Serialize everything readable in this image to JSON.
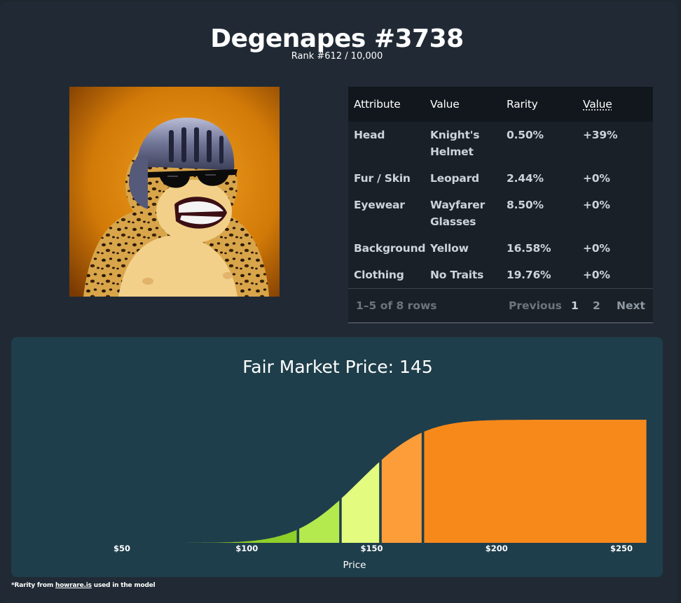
{
  "header": {
    "title": "Degenapes #3738",
    "rank": "Rank #612 / 10,000"
  },
  "image": {
    "background_color": "#e08a0c",
    "subject": "ape-with-knight-helmet"
  },
  "table": {
    "columns": [
      "Attribute",
      "Value",
      "Rarity",
      "Value"
    ],
    "rows": [
      {
        "attribute": "Head",
        "value": "Knight's Helmet",
        "rarity": "0.50%",
        "impact": "+39%"
      },
      {
        "attribute": "Fur / Skin",
        "value": "Leopard",
        "rarity": "2.44%",
        "impact": "+0%"
      },
      {
        "attribute": "Eyewear",
        "value": "Wayfarer Glasses",
        "rarity": "8.50%",
        "impact": "+0%"
      },
      {
        "attribute": "Background",
        "value": "Yellow",
        "rarity": "16.58%",
        "impact": "+0%"
      },
      {
        "attribute": "Clothing",
        "value": "No Traits",
        "rarity": "19.76%",
        "impact": "+0%"
      }
    ],
    "pagination": {
      "summary": "1–5 of 8 rows",
      "previous": "Previous",
      "pages": [
        "1",
        "2"
      ],
      "current_page": "1",
      "next": "Next"
    }
  },
  "chart_data": {
    "type": "area",
    "title": "Fair Market Price: 145",
    "xlabel": "Price",
    "ylabel": "",
    "x_ticks": [
      "$50",
      "$100",
      "$150",
      "$200",
      "$250"
    ],
    "x_tick_values": [
      50,
      100,
      150,
      200,
      250
    ],
    "xlim": [
      25,
      265
    ],
    "ylim": [
      0,
      1
    ],
    "grid": false,
    "curve": "cumulative",
    "mean": 145,
    "std": 20,
    "segments": [
      {
        "from": 25,
        "to": 120,
        "color": "#8fcf2a"
      },
      {
        "from": 121,
        "to": 137,
        "color": "#b4ea4e"
      },
      {
        "from": 138,
        "to": 153,
        "color": "#e3fb7e"
      },
      {
        "from": 154,
        "to": 170,
        "color": "#fd9d3a"
      },
      {
        "from": 171,
        "to": 260,
        "color": "#f7891a"
      }
    ]
  },
  "footnote": {
    "prefix": "*Rarity from ",
    "link": "howrare.is",
    "suffix": " used in the model"
  }
}
